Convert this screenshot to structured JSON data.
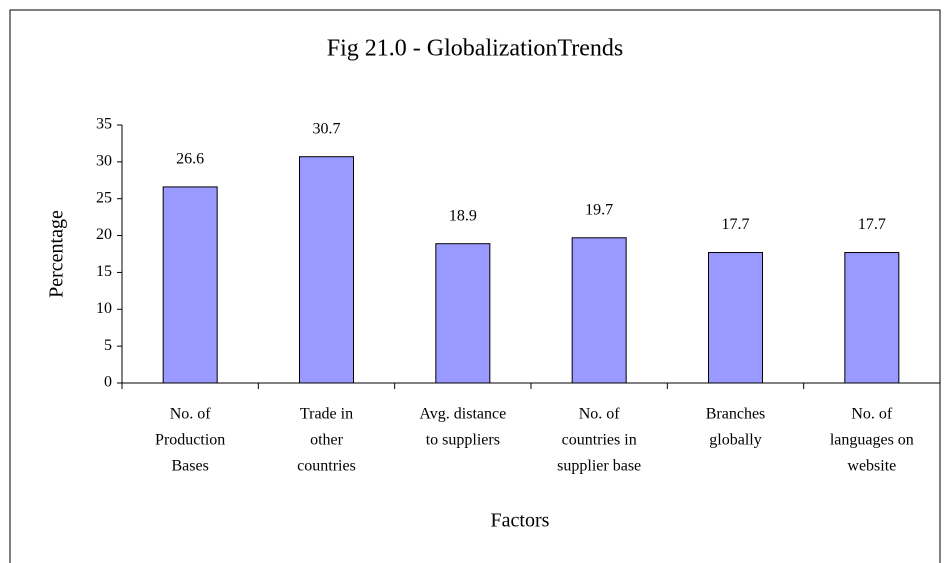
{
  "chart_data": {
    "type": "bar",
    "title": "Fig 21.0 - GlobalizationTrends",
    "x_label": "Factors",
    "y_label": "Percentage",
    "categories": [
      [
        "No. of",
        "Production",
        "Bases"
      ],
      [
        "Trade in",
        "other",
        "countries"
      ],
      [
        "Avg. distance",
        "to suppliers"
      ],
      [
        "No. of",
        "countries in",
        "supplier base"
      ],
      [
        "Branches",
        "globally"
      ],
      [
        "No. of",
        "languages on",
        "website"
      ]
    ],
    "values": [
      26.6,
      30.7,
      18.9,
      19.7,
      17.7,
      17.7
    ],
    "color": "#9999ff",
    "ylim": [
      0,
      35
    ],
    "yticks": [
      0,
      5,
      10,
      15,
      20,
      25,
      30,
      35
    ],
    "grid": false
  }
}
